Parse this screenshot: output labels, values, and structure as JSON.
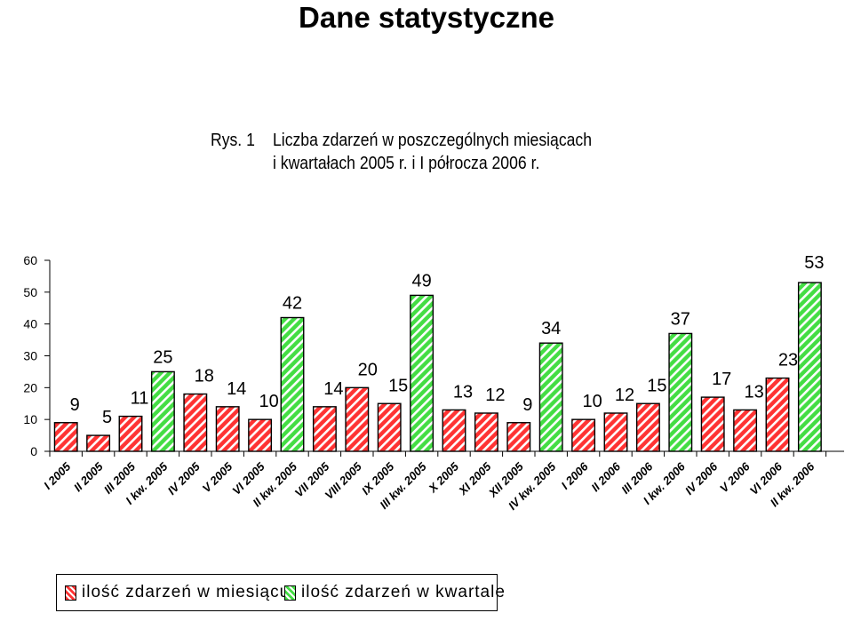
{
  "page_title": "Dane statystyczne",
  "caption": {
    "label": "Rys. 1",
    "line1": "Liczba zdarzeń w poszczególnych miesiącach",
    "line2": "i kwartałach 2005 r. i I półrocza 2006 r."
  },
  "colors": {
    "month_bar": "#ff3333",
    "quarter_bar": "#44dd44",
    "stripe": "#ffffff"
  },
  "legend": [
    {
      "label": "ilość zdarzeń w miesiącu",
      "series": "month"
    },
    {
      "label": "ilość zdarzeń w kwartale",
      "series": "quarter"
    }
  ],
  "chart_data": {
    "type": "bar",
    "title": "",
    "xlabel": "",
    "ylabel": "",
    "ylim": [
      0,
      60
    ],
    "yticks": [
      0,
      10,
      20,
      30,
      40,
      50,
      60
    ],
    "grid": false,
    "legend_position": "bottom-left",
    "categories": [
      "I 2005",
      "II 2005",
      "III 2005",
      "I kw. 2005",
      "IV 2005",
      "V 2005",
      "VI 2005",
      "II kw. 2005",
      "VII 2005",
      "VIII 2005",
      "IX 2005",
      "III kw. 2005",
      "X 2005",
      "XI 2005",
      "XII 2005",
      "IV kw. 2005",
      "I 2006",
      "II 2006",
      "III 2006",
      "I kw. 2006",
      "IV 2006",
      "V 2006",
      "VI 2006",
      "II kw. 2006"
    ],
    "values": [
      9,
      5,
      11,
      25,
      18,
      14,
      10,
      42,
      14,
      20,
      15,
      49,
      13,
      12,
      9,
      34,
      10,
      12,
      15,
      37,
      17,
      13,
      23,
      53
    ],
    "series_type": [
      "month",
      "month",
      "month",
      "quarter",
      "month",
      "month",
      "month",
      "quarter",
      "month",
      "month",
      "month",
      "quarter",
      "month",
      "month",
      "month",
      "quarter",
      "month",
      "month",
      "month",
      "quarter",
      "month",
      "month",
      "month",
      "quarter"
    ]
  }
}
